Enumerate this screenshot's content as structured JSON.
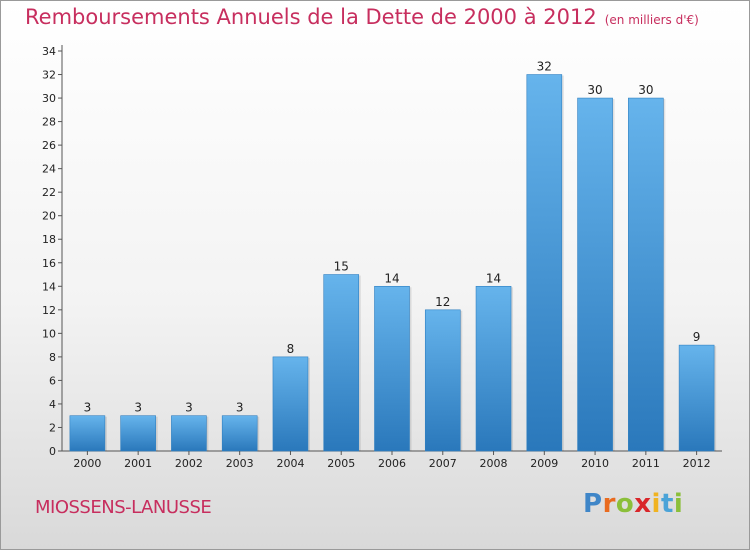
{
  "title": "Remboursements Annuels de la Dette de 2000 à 2012",
  "unit": "(en milliers d'€)",
  "commune": "MIOSSENS-LANUSSE",
  "logo": {
    "letters": [
      "P",
      "r",
      "o",
      "x",
      "i",
      "t",
      "i"
    ]
  },
  "colors": {
    "title": "#c72e5e",
    "bar_top": "#66b4ec",
    "bar_bottom": "#2a78bb"
  },
  "chart_data": {
    "type": "bar",
    "title": "Remboursements Annuels de la Dette de 2000 à 2012",
    "subtitle": "(en milliers d'€)",
    "categories": [
      "2000",
      "2001",
      "2002",
      "2003",
      "2004",
      "2005",
      "2006",
      "2007",
      "2008",
      "2009",
      "2010",
      "2011",
      "2012"
    ],
    "values": [
      3,
      3,
      3,
      3,
      8,
      15,
      14,
      12,
      14,
      32,
      30,
      30,
      9
    ],
    "yticks": [
      0,
      2,
      4,
      6,
      8,
      10,
      12,
      14,
      16,
      18,
      20,
      22,
      24,
      26,
      28,
      30,
      32,
      34
    ],
    "ylim": [
      0,
      34
    ],
    "grid": false,
    "data_labels": true
  }
}
